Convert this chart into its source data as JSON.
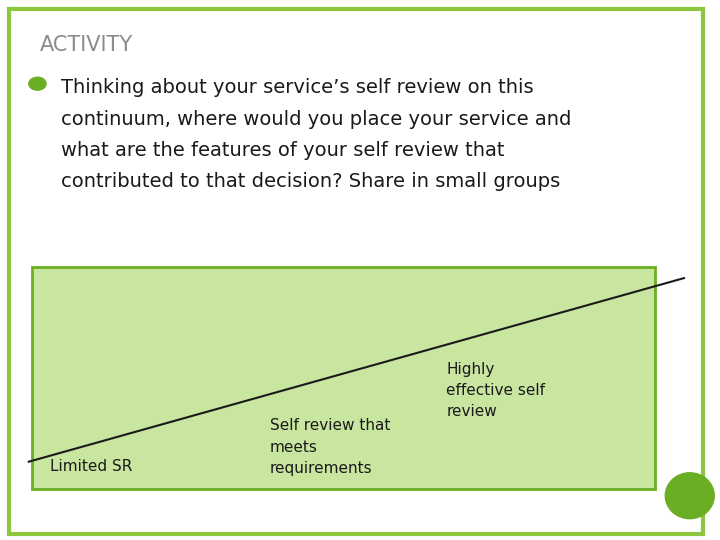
{
  "title": "ACTIVITY",
  "title_color": "#8c8c8c",
  "bullet_color": "#6aaf23",
  "bullet_text_line1": "Thinking about your service’s self review on this",
  "bullet_text_line2": "continuum, where would you place your service and",
  "bullet_text_line3": "what are the features of your self review that",
  "bullet_text_line4": "contributed to that decision? Share in small groups",
  "bullet_fontsize": 14,
  "title_fontsize": 15,
  "background": "#ffffff",
  "border_color": "#8dc63f",
  "box_bg": "#c8e6a0",
  "box_border": "#6aaf23",
  "line_color": "#1a1a1a",
  "label_limited_sr": "Limited SR",
  "label_middle": "Self review that\nmeets\nrequirements",
  "label_right": "Highly\neffective self\nreview",
  "circle_color": "#6aaf23",
  "text_color": "#1a1a1a"
}
